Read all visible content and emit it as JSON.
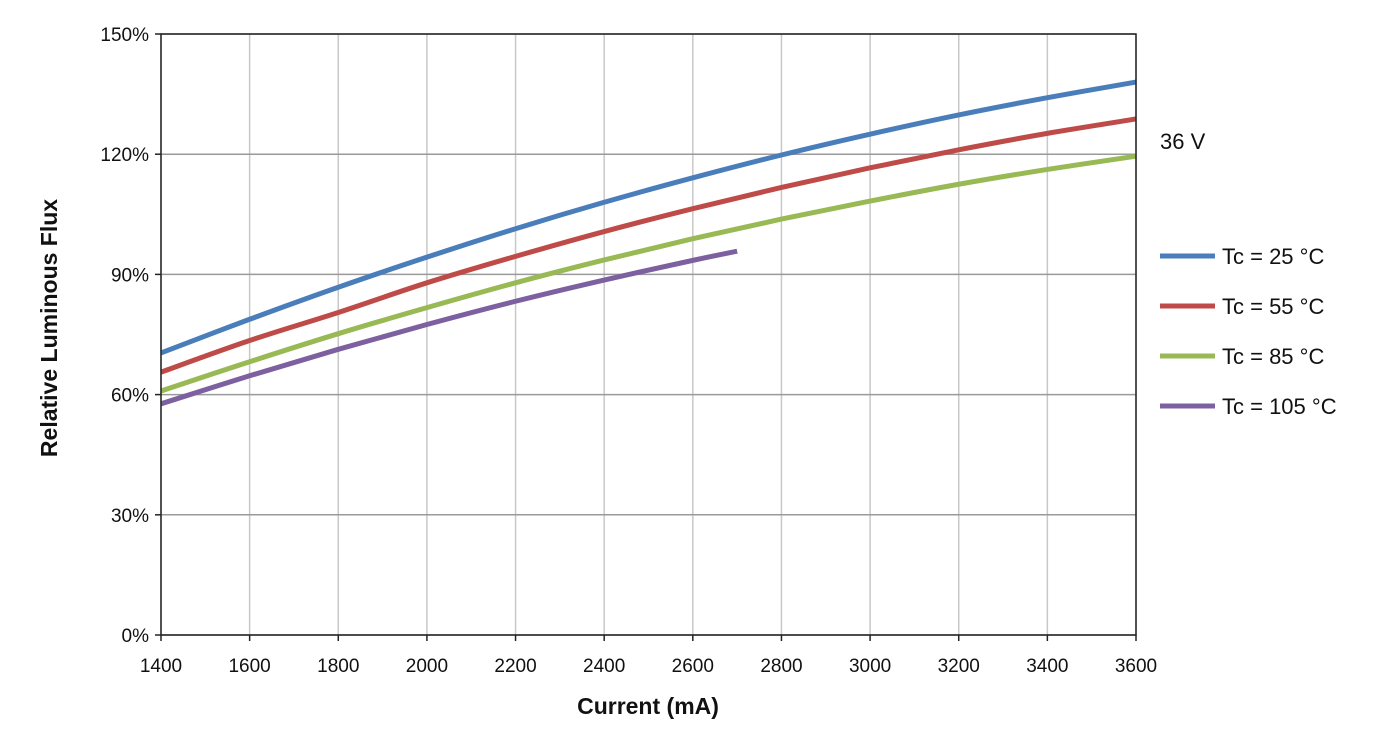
{
  "chart_data": {
    "type": "line",
    "title": "",
    "annotation": "36 V",
    "xlabel": "Current (mA)",
    "ylabel": "Relative Luminous Flux",
    "xlim": [
      1400,
      3600
    ],
    "ylim": [
      0,
      150
    ],
    "x_ticks": [
      1400,
      1600,
      1800,
      2000,
      2200,
      2400,
      2600,
      2800,
      3000,
      3200,
      3400,
      3600
    ],
    "y_ticks": [
      0,
      30,
      60,
      90,
      120,
      150
    ],
    "y_tick_labels": [
      "0%",
      "30%",
      "60%",
      "90%",
      "120%",
      "150%"
    ],
    "grid": true,
    "legend_position": "right",
    "series": [
      {
        "name": "Tc = 25 °C",
        "color": "#4a7ebb",
        "x": [
          1400,
          1600,
          1800,
          2000,
          2200,
          2400,
          2600,
          2800,
          3000,
          3200,
          3400,
          3600
        ],
        "y": [
          70.4,
          78.8,
          86.8,
          94.3,
          101.4,
          108.0,
          114.1,
          119.8,
          125.0,
          129.8,
          134.1,
          138.0
        ]
      },
      {
        "name": "Tc = 55 °C",
        "color": "#be4b48",
        "x": [
          1400,
          1600,
          1800,
          2000,
          2200,
          2400,
          2600,
          2800,
          3000,
          3200,
          3400,
          3600
        ],
        "y": [
          65.6,
          73.5,
          80.5,
          87.9,
          94.5,
          100.7,
          106.4,
          111.7,
          116.6,
          121.1,
          125.2,
          128.8
        ]
      },
      {
        "name": "Tc = 85 °C",
        "color": "#98b954",
        "x": [
          1400,
          1600,
          1800,
          2000,
          2200,
          2400,
          2600,
          2800,
          3000,
          3200,
          3400,
          3600
        ],
        "y": [
          60.9,
          68.2,
          75.2,
          81.7,
          87.9,
          93.6,
          98.9,
          103.8,
          108.3,
          112.5,
          116.2,
          119.5
        ]
      },
      {
        "name": "Tc = 105 °C",
        "color": "#7d60a0",
        "x": [
          1400,
          1600,
          1800,
          2000,
          2200,
          2400,
          2600,
          2700
        ],
        "y": [
          57.7,
          64.7,
          71.3,
          77.5,
          83.3,
          88.6,
          93.5,
          95.8
        ]
      }
    ]
  }
}
